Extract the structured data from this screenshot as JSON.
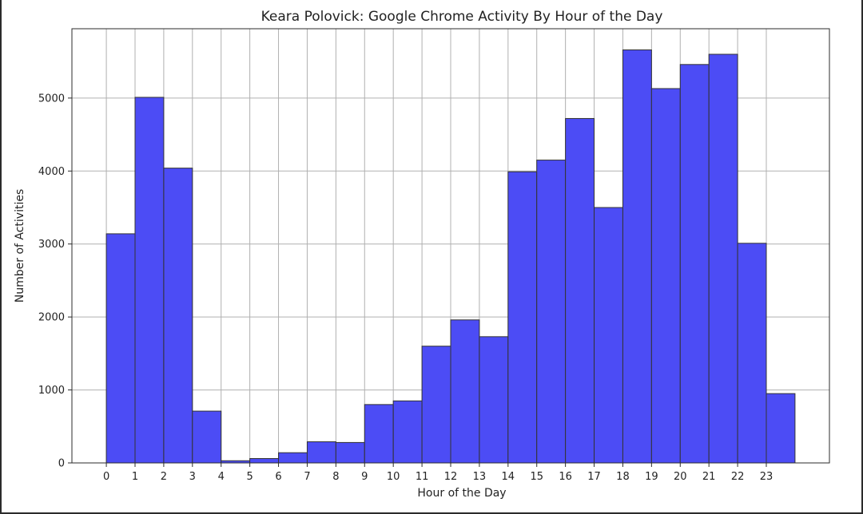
{
  "chart_data": {
    "type": "bar",
    "title": "Keara Polovick: Google Chrome Activity By Hour of the Day",
    "xlabel": "Hour of the Day",
    "ylabel": "Number of Activities",
    "categories": [
      "0",
      "1",
      "2",
      "3",
      "4",
      "5",
      "6",
      "7",
      "8",
      "9",
      "10",
      "11",
      "12",
      "13",
      "14",
      "15",
      "16",
      "17",
      "18",
      "19",
      "20",
      "21",
      "22",
      "23"
    ],
    "values": [
      3140,
      5010,
      4040,
      710,
      30,
      60,
      140,
      290,
      280,
      800,
      850,
      1600,
      1960,
      1730,
      3990,
      4150,
      4720,
      3500,
      5660,
      5130,
      5460,
      5600,
      3010,
      950
    ],
    "x_ticks": [
      "0",
      "1",
      "2",
      "3",
      "4",
      "5",
      "6",
      "7",
      "8",
      "9",
      "10",
      "11",
      "12",
      "13",
      "14",
      "15",
      "16",
      "17",
      "18",
      "19",
      "20",
      "21",
      "22",
      "23"
    ],
    "y_ticks": [
      "0",
      "1000",
      "2000",
      "3000",
      "4000",
      "5000"
    ],
    "ylim": [
      0,
      5950
    ],
    "grid": true,
    "bar_color": "#4c4cf5",
    "bar_edge_color": "#333333",
    "grid_color": "#b0b0b0"
  }
}
